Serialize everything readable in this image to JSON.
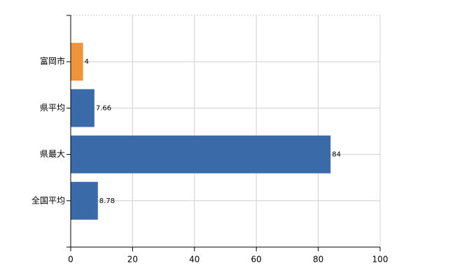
{
  "chart_data": {
    "type": "barh",
    "categories": [
      "富岡市",
      "県平均",
      "県最大",
      "全国平均"
    ],
    "values": [
      4,
      7.66,
      84,
      8.78
    ],
    "colors": [
      "#f0943a",
      "#3a6aa8",
      "#3a6aa8",
      "#3a6aa8"
    ],
    "xlim": [
      0,
      100
    ],
    "xticks": [
      0,
      20,
      40,
      60,
      80,
      100
    ],
    "grid": true
  }
}
